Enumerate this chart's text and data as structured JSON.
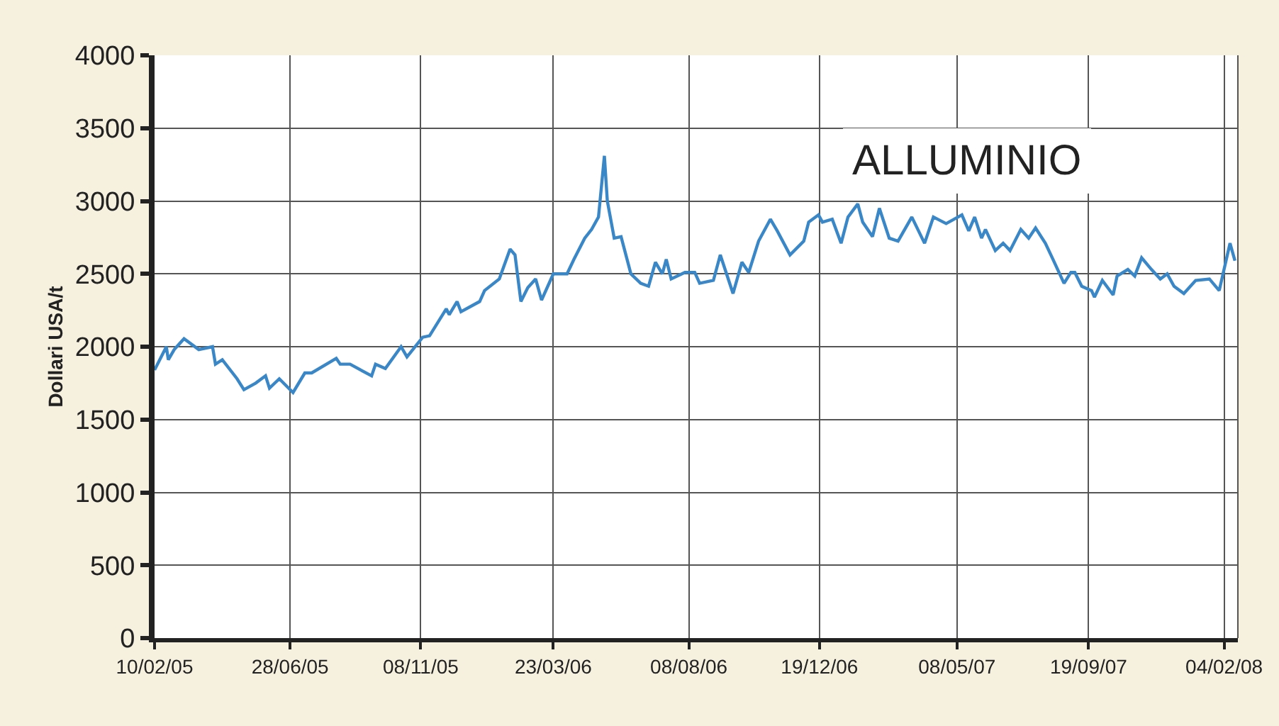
{
  "chart_data": {
    "type": "line",
    "title": "ALLUMINIO",
    "ylabel": "Dollari USA/t",
    "x": [
      "2005-02-10",
      "2005-02-22",
      "2005-02-24",
      "2005-03-02",
      "2005-03-12",
      "2005-03-27",
      "2005-04-10",
      "2005-04-13",
      "2005-04-20",
      "2005-05-05",
      "2005-05-12",
      "2005-05-24",
      "2005-06-03",
      "2005-06-07",
      "2005-06-17",
      "2005-07-01",
      "2005-07-13",
      "2005-07-20",
      "2005-08-14",
      "2005-08-18",
      "2005-08-28",
      "2005-09-19",
      "2005-09-23",
      "2005-10-03",
      "2005-10-19",
      "2005-10-25",
      "2005-11-10",
      "2005-11-17",
      "2005-12-04",
      "2005-12-07",
      "2005-12-15",
      "2005-12-19",
      "2006-01-07",
      "2006-01-12",
      "2006-01-27",
      "2006-02-07",
      "2006-02-12",
      "2006-02-18",
      "2006-02-25",
      "2006-03-05",
      "2006-03-11",
      "2006-03-23",
      "2006-04-06",
      "2006-04-13",
      "2006-04-24",
      "2006-05-01",
      "2006-05-08",
      "2006-05-14",
      "2006-05-17",
      "2006-05-24",
      "2006-05-31",
      "2006-06-10",
      "2006-06-20",
      "2006-06-28",
      "2006-07-05",
      "2006-07-12",
      "2006-07-16",
      "2006-07-21",
      "2006-08-04",
      "2006-08-14",
      "2006-08-19",
      "2006-09-02",
      "2006-09-09",
      "2006-09-22",
      "2006-10-01",
      "2006-10-08",
      "2006-10-18",
      "2006-10-30",
      "2006-11-06",
      "2006-11-19",
      "2006-12-03",
      "2006-12-08",
      "2006-12-18",
      "2006-12-22",
      "2007-01-01",
      "2007-01-10",
      "2007-01-17",
      "2007-01-27",
      "2007-02-01",
      "2007-02-11",
      "2007-02-18",
      "2007-02-28",
      "2007-03-09",
      "2007-03-23",
      "2007-04-05",
      "2007-04-14",
      "2007-04-27",
      "2007-05-13",
      "2007-05-20",
      "2007-05-26",
      "2007-06-02",
      "2007-06-06",
      "2007-06-16",
      "2007-06-24",
      "2007-07-01",
      "2007-07-12",
      "2007-07-20",
      "2007-07-27",
      "2007-08-06",
      "2007-08-13",
      "2007-08-25",
      "2007-09-01",
      "2007-09-05",
      "2007-09-12",
      "2007-09-22",
      "2007-09-25",
      "2007-10-03",
      "2007-10-14",
      "2007-10-18",
      "2007-10-29",
      "2007-11-05",
      "2007-11-12",
      "2007-11-22",
      "2007-12-01",
      "2007-12-08",
      "2007-12-15",
      "2007-12-25",
      "2008-01-06",
      "2008-01-20",
      "2008-01-30",
      "2008-02-10",
      "2008-02-15"
    ],
    "series": [
      {
        "color": "#3a87c8",
        "values": [
          1840,
          2000,
          1910,
          1980,
          2055,
          1980,
          2000,
          1880,
          1910,
          1780,
          1705,
          1750,
          1800,
          1715,
          1780,
          1685,
          1820,
          1820,
          1920,
          1880,
          1880,
          1800,
          1880,
          1850,
          2000,
          1930,
          2065,
          2075,
          2260,
          2220,
          2310,
          2240,
          2310,
          2385,
          2465,
          2670,
          2630,
          2310,
          2405,
          2465,
          2320,
          2500,
          2500,
          2600,
          2745,
          2805,
          2890,
          3310,
          3000,
          2745,
          2755,
          2500,
          2435,
          2415,
          2580,
          2500,
          2600,
          2465,
          2510,
          2510,
          2435,
          2455,
          2630,
          2365,
          2580,
          2510,
          2725,
          2875,
          2795,
          2630,
          2725,
          2855,
          2905,
          2855,
          2875,
          2710,
          2890,
          2980,
          2855,
          2755,
          2950,
          2745,
          2725,
          2890,
          2710,
          2890,
          2845,
          2905,
          2795,
          2890,
          2745,
          2805,
          2660,
          2710,
          2660,
          2805,
          2745,
          2815,
          2710,
          2610,
          2435,
          2510,
          2510,
          2415,
          2385,
          2340,
          2455,
          2355,
          2485,
          2530,
          2485,
          2610,
          2530,
          2465,
          2500,
          2415,
          2365,
          2455,
          2465,
          2385,
          2710,
          2590
        ]
      }
    ],
    "xlim": [
      "2005-02-10",
      "2008-02-18"
    ],
    "xticks": [
      {
        "value": "2005-02-10",
        "label": "10/02/05"
      },
      {
        "value": "2005-06-28",
        "label": "28/06/05"
      },
      {
        "value": "2005-11-08",
        "label": "08/11/05"
      },
      {
        "value": "2006-03-23",
        "label": "23/03/06"
      },
      {
        "value": "2006-08-08",
        "label": "08/08/06"
      },
      {
        "value": "2006-12-19",
        "label": "19/12/06"
      },
      {
        "value": "2007-05-08",
        "label": "08/05/07"
      },
      {
        "value": "2007-09-19",
        "label": "19/09/07"
      },
      {
        "value": "2008-02-04",
        "label": "04/02/08"
      }
    ],
    "ylim": [
      0,
      4000
    ],
    "yticks": [
      0,
      500,
      1000,
      1500,
      2000,
      2500,
      3000,
      3500,
      4000
    ],
    "grid": true,
    "marker": "none",
    "line_style": "solid"
  }
}
